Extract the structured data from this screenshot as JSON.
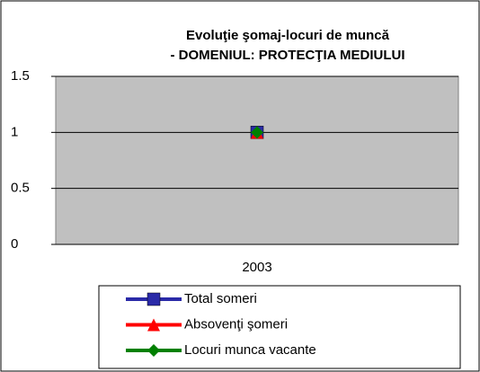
{
  "chart_data": {
    "type": "line",
    "title": [
      "Evoluţie şomaj-locuri de muncă",
      "- DOMENIUL: PROTECŢIA MEDIULUI"
    ],
    "categories": [
      "2003"
    ],
    "series": [
      {
        "name": "Total someri",
        "color": "#2a2aa8",
        "marker": "square",
        "values": [
          1
        ]
      },
      {
        "name": "Absovenţi şomeri",
        "color": "#ff0000",
        "marker": "triangle",
        "values": [
          1
        ]
      },
      {
        "name": "Locuri munca vacante",
        "color": "#008000",
        "marker": "diamond",
        "values": [
          1
        ]
      }
    ],
    "ylim": [
      0,
      1.5
    ],
    "yticks": [
      0,
      0.5,
      1,
      1.5
    ],
    "grid": true,
    "legend": "bottom"
  }
}
